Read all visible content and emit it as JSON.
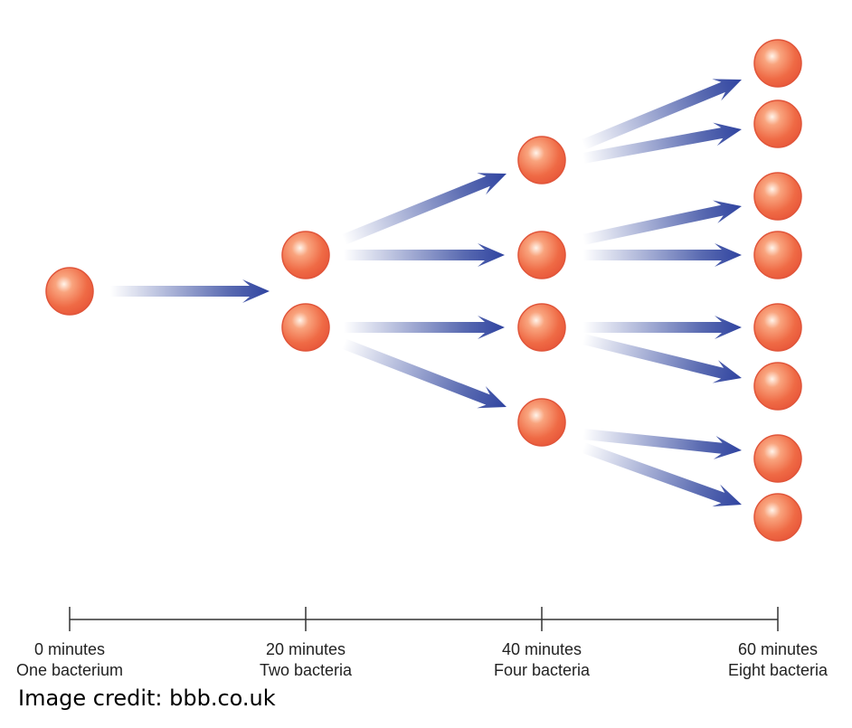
{
  "timeline": [
    {
      "time": "0 minutes",
      "count": "One bacterium"
    },
    {
      "time": "20 minutes",
      "count": "Two bacteria"
    },
    {
      "time": "40 minutes",
      "count": "Four bacteria"
    },
    {
      "time": "60 minutes",
      "count": "Eight bacteria"
    }
  ],
  "credit": "Image credit: bbb.co.uk"
}
